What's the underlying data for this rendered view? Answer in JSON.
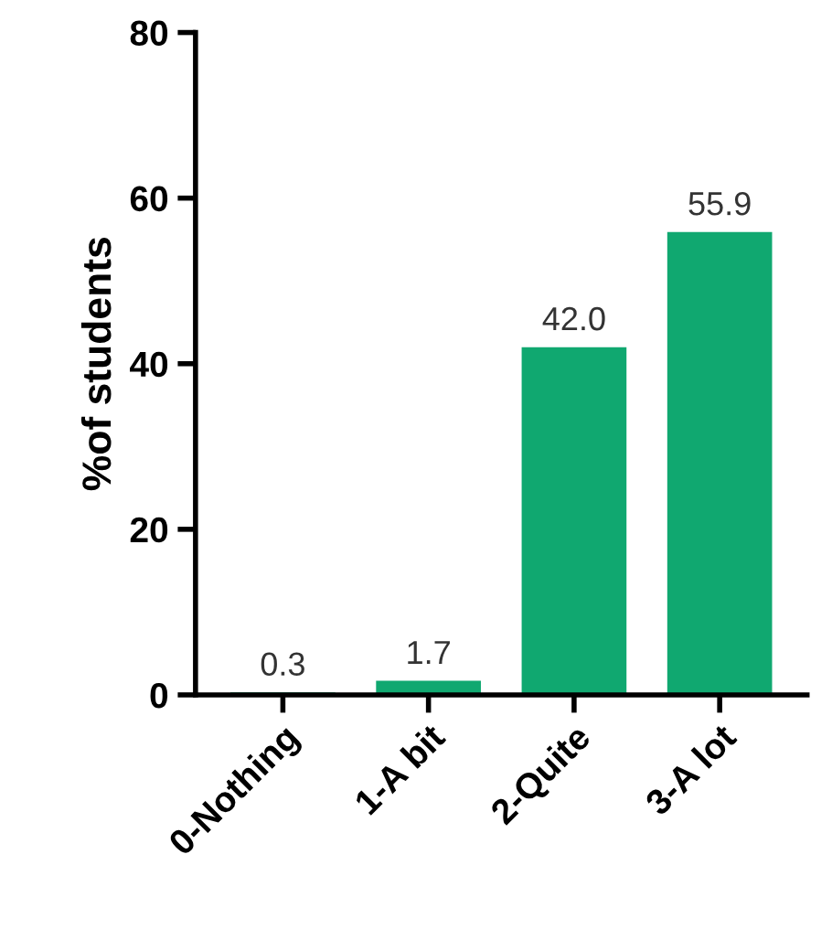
{
  "chart_data": {
    "type": "bar",
    "ylabel": "%of students",
    "categories": [
      "0-Nothing",
      "1-A bit",
      "2-Quite",
      "3-A lot"
    ],
    "values": [
      0.3,
      1.7,
      42.0,
      55.9
    ],
    "value_labels": [
      "0.3",
      "1.7",
      "42.0",
      "55.9"
    ],
    "color": "#10a870",
    "ylim": [
      0,
      80
    ],
    "yticks": [
      0,
      20,
      40,
      60,
      80
    ],
    "grid": false,
    "legend": false
  }
}
